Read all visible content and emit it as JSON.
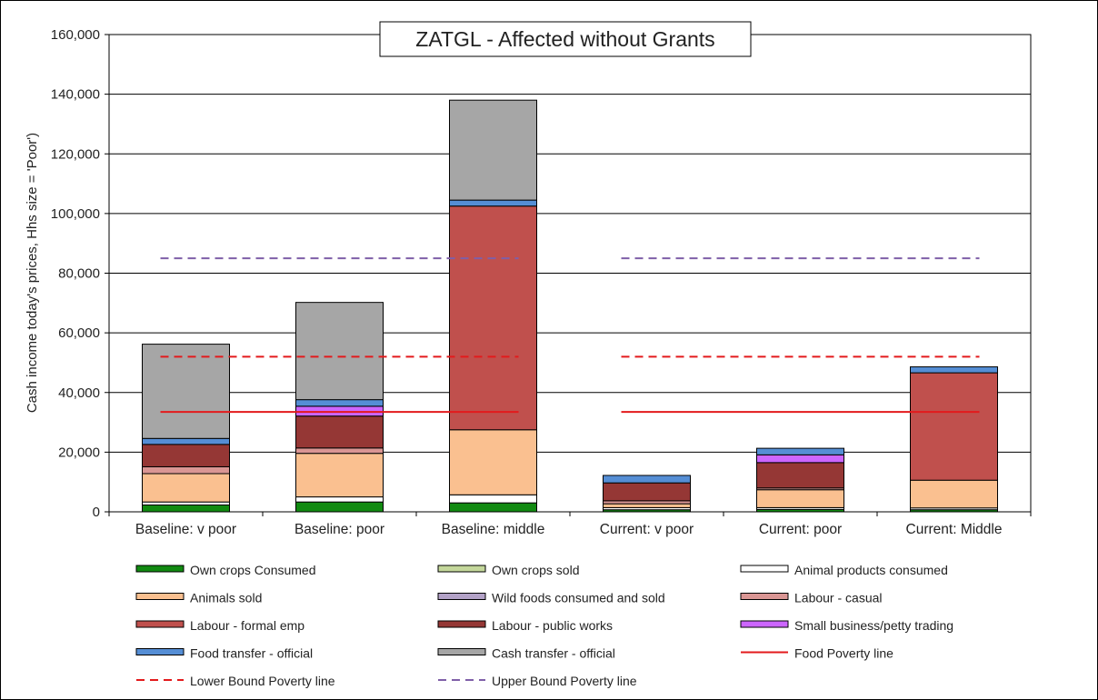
{
  "chart_data": {
    "type": "bar",
    "stacked": true,
    "title": "ZATGL - Affected without Grants",
    "ylabel": "Cash income today's prices, Hhs size = 'Poor')",
    "xlabel": "",
    "ylim": [
      0,
      160000
    ],
    "yticks": [
      "0",
      "20,000",
      "40,000",
      "60,000",
      "80,000",
      "100,000",
      "120,000",
      "140,000",
      "160,000"
    ],
    "grid": true,
    "legend_position": "bottom",
    "categories": [
      "Baseline: v poor",
      "Baseline: poor",
      "Baseline: middle",
      "Current: v poor",
      "Current: poor",
      "Current: Middle"
    ],
    "series": [
      {
        "name": "Own crops Consumed",
        "color": "#118a11",
        "values": [
          2300,
          3300,
          3000,
          700,
          800,
          700
        ]
      },
      {
        "name": "Own crops sold",
        "color": "#c4d79b",
        "values": [
          0,
          0,
          0,
          0,
          0,
          0
        ]
      },
      {
        "name": "Animal products consumed",
        "color": "#ffffff",
        "values": [
          1000,
          1700,
          2700,
          700,
          600,
          600
        ]
      },
      {
        "name": "Animals sold",
        "color": "#fac090",
        "values": [
          9500,
          14600,
          21800,
          1300,
          6000,
          9300
        ]
      },
      {
        "name": "Wild foods consumed and sold",
        "color": "#b3a2c7",
        "values": [
          0,
          0,
          0,
          0,
          0,
          0
        ]
      },
      {
        "name": "Labour - casual",
        "color": "#da9694",
        "values": [
          2300,
          1800,
          0,
          1000,
          600,
          0
        ]
      },
      {
        "name": "Labour - formal emp",
        "color": "#c0504d",
        "values": [
          0,
          0,
          75000,
          0,
          0,
          36000
        ]
      },
      {
        "name": "Labour - public works",
        "color": "#953735",
        "values": [
          7500,
          10700,
          0,
          6000,
          8500,
          0
        ]
      },
      {
        "name": "Small business/petty trading",
        "color": "#cc66ff",
        "values": [
          0,
          3300,
          0,
          0,
          2600,
          0
        ]
      },
      {
        "name": "Food transfer - official",
        "color": "#558ed5",
        "values": [
          2000,
          2200,
          2000,
          2500,
          2200,
          2000
        ]
      },
      {
        "name": "Cash transfer - official",
        "color": "#a6a6a6",
        "values": [
          31600,
          32600,
          33500,
          0,
          0,
          0
        ]
      }
    ],
    "lines": [
      {
        "name": "Food Poverty line",
        "style": "solid",
        "color": "#e31a1c",
        "value": 33500,
        "groups": [
          [
            0,
            2
          ],
          [
            3,
            5
          ]
        ]
      },
      {
        "name": "Lower Bound Poverty line",
        "style": "dashed",
        "color": "#e31a1c",
        "value": 52000,
        "groups": [
          [
            0,
            2
          ],
          [
            3,
            5
          ]
        ]
      },
      {
        "name": "Upper Bound Poverty line",
        "style": "dashed",
        "color": "#7f5fa8",
        "value": 85000,
        "groups": [
          [
            0,
            2
          ],
          [
            3,
            5
          ]
        ]
      }
    ]
  }
}
